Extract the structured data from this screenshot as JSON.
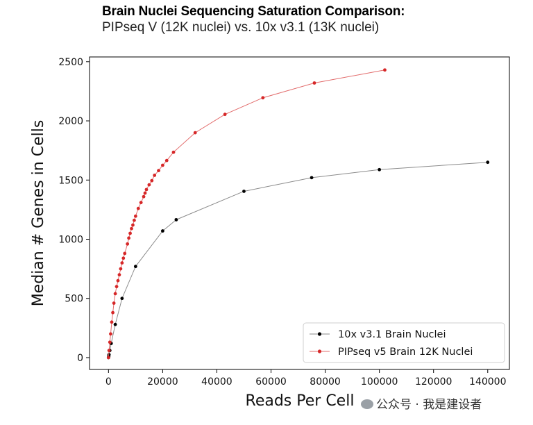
{
  "chart_data": {
    "type": "line",
    "title": "Brain Nuclei Sequencing Saturation Comparison:",
    "subtitle": "PIPseq V (12K nuclei)  vs. 10x v3.1 (13K nuclei)",
    "xlabel": "Reads Per Cell",
    "ylabel": "Median # Genes in Cells",
    "xlim": [
      -7000,
      148000
    ],
    "ylim": [
      -100,
      2540
    ],
    "xticks": [
      0,
      20000,
      40000,
      60000,
      80000,
      100000,
      120000,
      140000
    ],
    "yticks": [
      0,
      500,
      1000,
      1500,
      2000,
      2500
    ],
    "grid": false,
    "legend_position": "bottom-right",
    "series": [
      {
        "name": "10x v3.1 Brain Nuclei",
        "color": "#000000",
        "line_color": "#8a8a8a",
        "x": [
          0,
          100,
          200,
          500,
          1000,
          2500,
          5000,
          10000,
          20000,
          25000,
          50000,
          75000,
          100000,
          140000
        ],
        "y": [
          0,
          10,
          25,
          60,
          120,
          280,
          500,
          770,
          1070,
          1165,
          1405,
          1520,
          1588,
          1650
        ]
      },
      {
        "name": "PIPseq v5 Brain 12K Nuclei",
        "color": "#d62728",
        "line_color": "#e26b6b",
        "x": [
          0,
          200,
          500,
          800,
          1200,
          1600,
          2000,
          2500,
          3000,
          3500,
          4000,
          4500,
          5000,
          5500,
          6000,
          7000,
          7500,
          8000,
          8500,
          9000,
          9500,
          10000,
          11000,
          12000,
          13000,
          13500,
          14000,
          15000,
          16000,
          17000,
          18500,
          20000,
          21500,
          24000,
          32000,
          43000,
          57000,
          76000,
          102000
        ],
        "y": [
          0,
          60,
          130,
          200,
          300,
          380,
          460,
          540,
          600,
          650,
          700,
          750,
          800,
          840,
          880,
          960,
          1010,
          1050,
          1090,
          1120,
          1160,
          1195,
          1260,
          1310,
          1360,
          1390,
          1420,
          1460,
          1495,
          1540,
          1580,
          1625,
          1665,
          1735,
          1900,
          2055,
          2195,
          2320,
          2430
        ]
      }
    ]
  },
  "watermark": {
    "text": "公众号 · 我是建设者"
  }
}
